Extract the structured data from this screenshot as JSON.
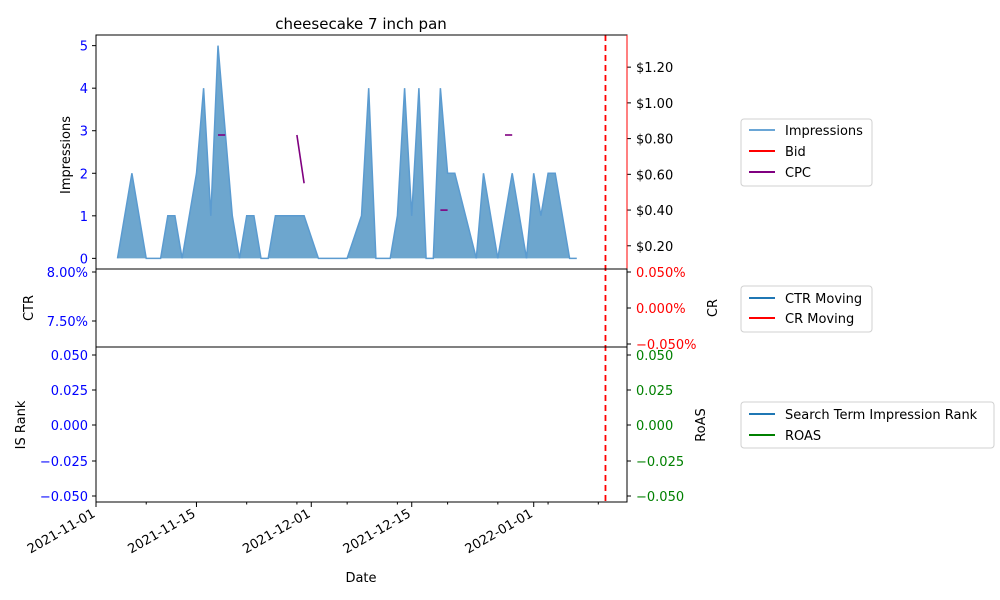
{
  "chart_data": [
    {
      "type": "area",
      "title": "cheesecake 7 inch pan",
      "xlabel": "Date",
      "ylabel": "Impressions",
      "ylabel_right": "",
      "x_range": [
        "2021-11-01",
        "2022-01-14"
      ],
      "x_ticks": [
        "2021-11-01",
        "2021-11-15",
        "2021-12-01",
        "2021-12-15",
        "2022-01-01"
      ],
      "ylim": [
        -0.25,
        5.25
      ],
      "y_ticks": [
        "0",
        "1",
        "2",
        "3",
        "4",
        "5"
      ],
      "ylim_right": [
        0.07,
        1.38
      ],
      "y_ticks_right": [
        "$0.20",
        "$0.40",
        "$0.60",
        "$0.80",
        "$1.00",
        "$1.20"
      ],
      "y_ticks_right_values": [
        0.2,
        0.4,
        0.6,
        0.8,
        1.0,
        1.2
      ],
      "marker_date": "2022-01-11",
      "series": [
        {
          "name": "Impressions",
          "color": "#1f77b4",
          "points": [
            [
              "2021-11-04",
              0
            ],
            [
              "2021-11-06",
              2
            ],
            [
              "2021-11-08",
              0
            ],
            [
              "2021-11-09",
              0
            ],
            [
              "2021-11-10",
              0
            ],
            [
              "2021-11-11",
              1
            ],
            [
              "2021-11-12",
              1
            ],
            [
              "2021-11-13",
              0
            ],
            [
              "2021-11-15",
              2
            ],
            [
              "2021-11-16",
              4
            ],
            [
              "2021-11-17",
              1
            ],
            [
              "2021-11-18",
              5
            ],
            [
              "2021-11-20",
              1
            ],
            [
              "2021-11-21",
              0
            ],
            [
              "2021-11-22",
              1
            ],
            [
              "2021-11-23",
              1
            ],
            [
              "2021-11-24",
              0
            ],
            [
              "2021-11-25",
              0
            ],
            [
              "2021-11-26",
              1
            ],
            [
              "2021-11-27",
              1
            ],
            [
              "2021-11-28",
              1
            ],
            [
              "2021-11-29",
              1
            ],
            [
              "2021-11-30",
              1
            ],
            [
              "2021-12-02",
              0
            ],
            [
              "2021-12-03",
              0
            ],
            [
              "2021-12-04",
              0
            ],
            [
              "2021-12-05",
              0
            ],
            [
              "2021-12-06",
              0
            ],
            [
              "2021-12-08",
              1
            ],
            [
              "2021-12-09",
              4
            ],
            [
              "2021-12-10",
              0
            ],
            [
              "2021-12-11",
              0
            ],
            [
              "2021-12-12",
              0
            ],
            [
              "2021-12-13",
              1
            ],
            [
              "2021-12-14",
              4
            ],
            [
              "2021-12-15",
              1
            ],
            [
              "2021-12-16",
              4
            ],
            [
              "2021-12-17",
              0
            ],
            [
              "2021-12-18",
              0
            ],
            [
              "2021-12-19",
              4
            ],
            [
              "2021-12-20",
              2
            ],
            [
              "2021-12-21",
              2
            ],
            [
              "2021-12-24",
              0
            ],
            [
              "2021-12-25",
              2
            ],
            [
              "2021-12-27",
              0
            ],
            [
              "2021-12-29",
              2
            ],
            [
              "2021-12-31",
              0
            ],
            [
              "2022-01-01",
              2
            ],
            [
              "2022-01-02",
              1
            ],
            [
              "2022-01-03",
              2
            ],
            [
              "2022-01-04",
              2
            ],
            [
              "2022-01-06",
              0
            ],
            [
              "2022-01-07",
              0
            ]
          ]
        },
        {
          "name": "Bid",
          "color": "#ff0000",
          "points": []
        },
        {
          "name": "CPC",
          "color": "#800080",
          "axis": "right",
          "segments": [
            [
              [
                "2021-11-18",
                0.82
              ],
              [
                "2021-11-19",
                0.82
              ]
            ],
            [
              [
                "2021-11-29",
                0.82
              ],
              [
                "2021-11-30",
                0.55
              ]
            ],
            [
              [
                "2021-12-19",
                0.4
              ],
              [
                "2021-12-20",
                0.4
              ]
            ],
            [
              [
                "2021-12-28",
                0.82
              ],
              [
                "2021-12-29",
                0.82
              ]
            ]
          ]
        }
      ]
    },
    {
      "type": "line",
      "title": "",
      "ylabel": "CTR",
      "ylabel_right": "CR",
      "y_ticks": [
        "8.00%",
        "7.50%"
      ],
      "y_ticks_right": [
        "0.050%",
        "0.000%",
        "−0.050%"
      ],
      "series": [
        {
          "name": "CTR Moving",
          "color": "#1f77b4",
          "values": []
        },
        {
          "name": "CR Moving",
          "color": "#ff0000",
          "values": []
        }
      ]
    },
    {
      "type": "line",
      "title": "",
      "ylabel": "IS Rank",
      "ylabel_right": "RoAS",
      "y_ticks": [
        "0.050",
        "0.025",
        "0.000",
        "−0.025",
        "−0.050"
      ],
      "y_ticks_right": [
        "0.050",
        "0.025",
        "0.000",
        "−0.025",
        "−0.050"
      ],
      "series": [
        {
          "name": "Search Term Impression Rank",
          "color": "#1f77b4",
          "values": []
        },
        {
          "name": "ROAS",
          "color": "#008000",
          "values": []
        }
      ]
    }
  ],
  "colors": {
    "left_axis": "#0000ff",
    "cr_axis": "#ff0000",
    "roas_axis": "#008000",
    "marker_line": "#ff0000",
    "area_fill": "#1f77b4"
  }
}
